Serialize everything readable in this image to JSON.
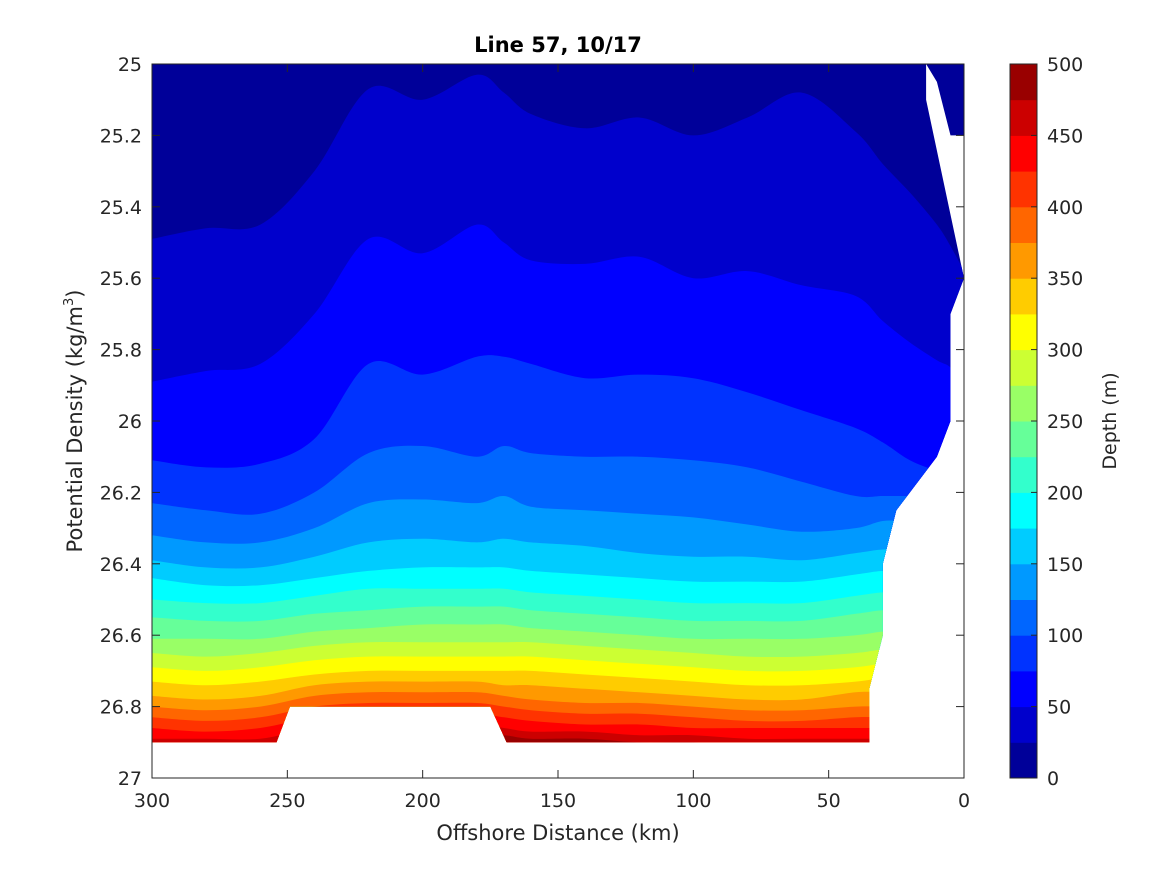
{
  "chart_data": {
    "type": "contour",
    "title": "Line 57, 10/17",
    "xlabel": "Offshore Distance (km)",
    "ylabel_main": "Potential Density (kg/m",
    "ylabel_sup": "3",
    "ylabel_end": ")",
    "xlim": [
      300,
      0
    ],
    "x_reversed": true,
    "ylim": [
      25,
      27
    ],
    "y_reversed": true,
    "xticks": [
      300,
      250,
      200,
      150,
      100,
      50,
      0
    ],
    "xtick_labels": [
      "300",
      "250",
      "200",
      "150",
      "100",
      "50",
      "0"
    ],
    "yticks": [
      25,
      25.2,
      25.4,
      25.6,
      25.8,
      26,
      26.2,
      26.4,
      26.6,
      26.8,
      27
    ],
    "ytick_labels": [
      "25",
      "25.2",
      "25.4",
      "25.6",
      "25.8",
      "26",
      "26.2",
      "26.4",
      "26.6",
      "26.8",
      "27"
    ],
    "colorbar": {
      "label": "Depth (m)",
      "range": [
        0,
        500
      ],
      "ticks": [
        0,
        50,
        100,
        150,
        200,
        250,
        300,
        350,
        400,
        450,
        500
      ],
      "tick_labels": [
        "0",
        "50",
        "100",
        "150",
        "200",
        "250",
        "300",
        "350",
        "400",
        "450",
        "500"
      ],
      "level_step": 25,
      "colormap": "jet"
    },
    "x": [
      300,
      280,
      260,
      240,
      220,
      200,
      180,
      170,
      160,
      140,
      120,
      100,
      80,
      60,
      40,
      30,
      20,
      10,
      5,
      0
    ],
    "depth_contours": [
      {
        "level": 25,
        "sigma": [
          25.49,
          25.46,
          25.45,
          25.3,
          25.07,
          25.1,
          25.03,
          25.08,
          25.14,
          25.18,
          25.15,
          25.2,
          25.15,
          25.08,
          25.19,
          25.28,
          25.36,
          25.45,
          25.51,
          25.58
        ]
      },
      {
        "level": 50,
        "sigma": [
          25.89,
          25.86,
          25.84,
          25.7,
          25.49,
          25.53,
          25.45,
          25.5,
          25.55,
          25.56,
          25.54,
          25.6,
          25.58,
          25.62,
          25.65,
          25.72,
          25.78,
          25.83,
          25.85,
          25.9
        ]
      },
      {
        "level": 75,
        "sigma": [
          26.11,
          26.13,
          26.12,
          26.05,
          25.84,
          25.87,
          25.82,
          25.82,
          25.84,
          25.88,
          25.87,
          25.88,
          25.92,
          25.97,
          26.02,
          26.06,
          26.11,
          26.14,
          26.15,
          26.18
        ]
      },
      {
        "level": 100,
        "sigma": [
          26.23,
          26.25,
          26.26,
          26.2,
          26.09,
          26.07,
          26.1,
          26.07,
          26.09,
          26.1,
          26.1,
          26.11,
          26.13,
          26.17,
          26.21,
          26.21,
          26.21,
          26.21,
          26.21,
          26.21
        ]
      },
      {
        "level": 125,
        "sigma": [
          26.32,
          26.34,
          26.34,
          26.3,
          26.23,
          26.22,
          26.23,
          26.21,
          26.24,
          26.25,
          26.26,
          26.27,
          26.29,
          26.31,
          26.3,
          26.28,
          26.28,
          26.28,
          26.28,
          26.28
        ]
      },
      {
        "level": 150,
        "sigma": [
          26.39,
          26.41,
          26.41,
          26.38,
          26.34,
          26.33,
          26.34,
          26.33,
          26.34,
          26.35,
          26.37,
          26.38,
          26.38,
          26.39,
          26.37,
          26.36,
          26.36,
          26.36,
          26.36,
          26.36
        ]
      },
      {
        "level": 175,
        "sigma": [
          26.44,
          26.46,
          26.46,
          26.44,
          26.42,
          26.41,
          26.41,
          26.41,
          26.42,
          26.43,
          26.44,
          26.45,
          26.45,
          26.45,
          26.43,
          26.42,
          26.42,
          26.42,
          26.42,
          26.42
        ]
      },
      {
        "level": 200,
        "sigma": [
          26.5,
          26.51,
          26.51,
          26.49,
          26.47,
          26.47,
          26.47,
          26.47,
          26.48,
          26.49,
          26.5,
          26.51,
          26.51,
          26.51,
          26.49,
          26.48,
          26.48,
          26.48,
          26.48,
          26.48
        ]
      },
      {
        "level": 225,
        "sigma": [
          26.55,
          26.56,
          26.56,
          26.54,
          26.53,
          26.52,
          26.52,
          26.52,
          26.53,
          26.54,
          26.55,
          26.56,
          26.56,
          26.56,
          26.54,
          26.53,
          26.53,
          26.53,
          26.53,
          26.53
        ]
      },
      {
        "level": 250,
        "sigma": [
          26.61,
          26.61,
          26.61,
          26.59,
          26.58,
          26.57,
          26.57,
          26.57,
          26.58,
          26.59,
          26.6,
          26.61,
          26.61,
          26.61,
          26.6,
          26.59,
          26.59,
          26.59,
          26.59,
          26.59
        ]
      },
      {
        "level": 275,
        "sigma": [
          26.65,
          26.66,
          26.65,
          26.63,
          26.62,
          26.62,
          26.62,
          26.62,
          26.62,
          26.63,
          26.64,
          26.65,
          26.66,
          26.66,
          26.65,
          26.64,
          26.64,
          26.64,
          26.64,
          26.64
        ]
      },
      {
        "level": 300,
        "sigma": [
          26.69,
          26.7,
          26.69,
          26.67,
          26.66,
          26.66,
          26.66,
          26.66,
          26.66,
          26.67,
          26.68,
          26.69,
          26.7,
          26.7,
          26.69,
          26.68,
          26.68,
          26.68,
          26.68,
          26.68
        ]
      },
      {
        "level": 325,
        "sigma": [
          26.73,
          26.74,
          26.73,
          26.71,
          26.7,
          26.7,
          26.7,
          26.7,
          26.7,
          26.71,
          26.72,
          26.73,
          26.74,
          26.74,
          26.73,
          26.72,
          26.72,
          26.72,
          26.72,
          26.72
        ]
      },
      {
        "level": 350,
        "sigma": [
          26.77,
          26.78,
          26.77,
          26.74,
          26.73,
          26.73,
          26.73,
          26.74,
          26.74,
          26.75,
          26.76,
          26.77,
          26.78,
          26.78,
          26.76,
          26.76,
          26.76,
          26.76,
          26.76,
          26.76
        ]
      },
      {
        "level": 375,
        "sigma": [
          26.8,
          26.81,
          26.8,
          26.77,
          26.76,
          26.76,
          26.76,
          26.77,
          26.78,
          26.79,
          26.79,
          26.8,
          26.81,
          26.81,
          26.8,
          26.8,
          26.8,
          26.8,
          26.8,
          26.8
        ]
      },
      {
        "level": 400,
        "sigma": [
          26.83,
          26.84,
          26.83,
          26.8,
          26.79,
          26.79,
          26.79,
          26.8,
          26.81,
          26.82,
          26.82,
          26.83,
          26.84,
          26.84,
          26.83,
          26.83,
          26.83,
          26.83,
          26.83,
          26.83
        ]
      },
      {
        "level": 425,
        "sigma": [
          26.86,
          26.87,
          26.86,
          26.83,
          26.82,
          26.82,
          26.82,
          26.83,
          26.84,
          26.85,
          26.85,
          26.86,
          26.86,
          26.86,
          26.86,
          26.86,
          26.86,
          26.86,
          26.86,
          26.86
        ]
      },
      {
        "level": 450,
        "sigma": [
          26.89,
          26.89,
          26.89,
          26.86,
          26.85,
          26.85,
          26.85,
          26.86,
          26.87,
          26.87,
          26.88,
          26.88,
          26.89,
          26.89,
          26.89,
          26.89,
          26.89,
          26.89,
          26.89,
          26.89
        ]
      },
      {
        "level": 475,
        "sigma": [
          26.92,
          26.92,
          26.92,
          26.89,
          26.88,
          26.88,
          26.88,
          26.88,
          26.89,
          26.89,
          26.9,
          26.9,
          26.91,
          26.91,
          26.92,
          26.92,
          26.92,
          26.92,
          26.92,
          26.92
        ]
      }
    ],
    "data_extent": {
      "sigma_bottom": 26.9,
      "shoreward_edge": [
        [
          0,
          25
        ],
        [
          0,
          25.2
        ],
        [
          5,
          25.2
        ],
        [
          10,
          25.05
        ],
        [
          14,
          25
        ],
        [
          14,
          25.1
        ],
        [
          0,
          25.6
        ],
        [
          5,
          25.7
        ],
        [
          5,
          26.0
        ],
        [
          10,
          26.1
        ],
        [
          20,
          26.2
        ],
        [
          25,
          26.25
        ],
        [
          30,
          26.4
        ],
        [
          30,
          26.6
        ],
        [
          35,
          26.75
        ],
        [
          35,
          26.9
        ]
      ],
      "bottom_notch": [
        [
          254,
          26.9
        ],
        [
          249,
          26.8
        ],
        [
          175,
          26.8
        ],
        [
          169,
          26.9
        ]
      ]
    }
  },
  "colors": {
    "axis": "#262626",
    "background": "#ffffff",
    "missing": "#ffffff"
  }
}
